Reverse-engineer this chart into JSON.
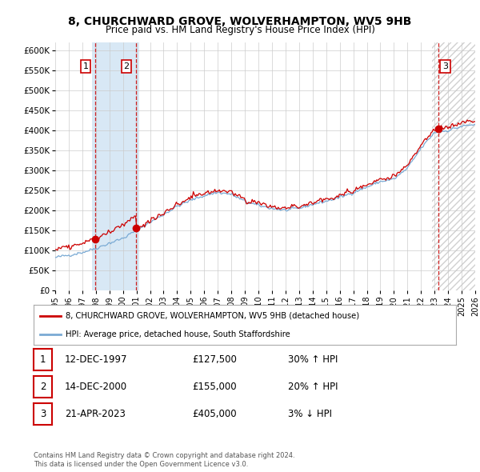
{
  "title_line1": "8, CHURCHWARD GROVE, WOLVERHAMPTON, WV5 9HB",
  "title_line2": "Price paid vs. HM Land Registry's House Price Index (HPI)",
  "xmin": 1995,
  "xmax": 2026,
  "ymin": 0,
  "ymax": 620000,
  "yticks": [
    0,
    50000,
    100000,
    150000,
    200000,
    250000,
    300000,
    350000,
    400000,
    450000,
    500000,
    550000,
    600000
  ],
  "ytick_labels": [
    "£0",
    "£50K",
    "£100K",
    "£150K",
    "£200K",
    "£250K",
    "£300K",
    "£350K",
    "£400K",
    "£450K",
    "£500K",
    "£550K",
    "£600K"
  ],
  "xticks": [
    1995,
    1996,
    1997,
    1998,
    1999,
    2000,
    2001,
    2002,
    2003,
    2004,
    2005,
    2006,
    2007,
    2008,
    2009,
    2010,
    2011,
    2012,
    2013,
    2014,
    2015,
    2016,
    2017,
    2018,
    2019,
    2020,
    2021,
    2022,
    2023,
    2024,
    2025,
    2026
  ],
  "sale1_x": 1997.95,
  "sale1_y": 127500,
  "sale1_label": "1",
  "sale2_x": 2000.95,
  "sale2_y": 155000,
  "sale2_label": "2",
  "sale3_x": 2023.3,
  "sale3_y": 405000,
  "sale3_label": "3",
  "sale_color": "#cc0000",
  "hpi_color": "#7aaad4",
  "shade_color": "#d8e8f5",
  "hatch_color": "#d0d0d0",
  "background_color": "#ffffff",
  "grid_color": "#cccccc",
  "legend_label_sale": "8, CHURCHWARD GROVE, WOLVERHAMPTON, WV5 9HB (detached house)",
  "legend_label_hpi": "HPI: Average price, detached house, South Staffordshire",
  "table_rows": [
    {
      "num": "1",
      "date": "12-DEC-1997",
      "price": "£127,500",
      "hpi": "30% ↑ HPI"
    },
    {
      "num": "2",
      "date": "14-DEC-2000",
      "price": "£155,000",
      "hpi": "20% ↑ HPI"
    },
    {
      "num": "3",
      "date": "21-APR-2023",
      "price": "£405,000",
      "hpi": "3% ↓ HPI"
    }
  ],
  "footnote": "Contains HM Land Registry data © Crown copyright and database right 2024.\nThis data is licensed under the Open Government Licence v3.0.",
  "shade1_xstart": 1997.7,
  "shade1_xend": 2001.2,
  "shade2_xstart": 2022.8,
  "shade2_xend": 2026.0
}
